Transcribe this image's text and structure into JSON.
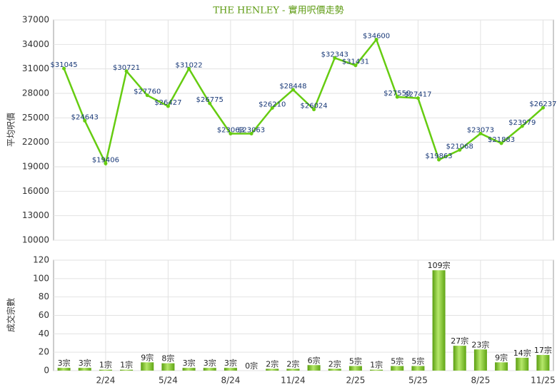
{
  "chart_data": [
    {
      "type": "line",
      "title": "THE HENLEY - 實用呎價走勢",
      "y_label": "平均呎價",
      "color": "#66cc11",
      "values": [
        31045,
        24643,
        19406,
        30721,
        27760,
        26427,
        31022,
        26775,
        23063,
        23063,
        26210,
        28448,
        26024,
        32343,
        31431,
        34600,
        27559,
        27417,
        19863,
        21068,
        23073,
        21883,
        23979,
        26237
      ],
      "value_labels": [
        "$31045",
        "$24643",
        "$19406",
        "$30721",
        "$27760",
        "$26427",
        "$31022",
        "$26775",
        "$23063",
        "$23063",
        "$26210",
        "$28448",
        "$26024",
        "$32343",
        "$31431",
        "$34600",
        "$27559",
        "$27417",
        "$19863",
        "$21068",
        "$23073",
        "$21883",
        "$23979",
        "$26237"
      ],
      "ylim": [
        10000,
        37000
      ],
      "yticks": [
        10000,
        13000,
        16000,
        19000,
        22000,
        25000,
        28000,
        31000,
        34000,
        37000
      ],
      "grid": true
    },
    {
      "type": "bar",
      "y_label": "成交宗數",
      "color": "#7cc520",
      "categories": [
        null,
        null,
        "2/24",
        null,
        null,
        "5/24",
        null,
        null,
        "8/24",
        null,
        null,
        "11/24",
        null,
        null,
        "2/25",
        null,
        null,
        "5/25",
        null,
        null,
        "8/25",
        null,
        null,
        "11/25"
      ],
      "values": [
        3,
        3,
        1,
        1,
        9,
        8,
        3,
        3,
        3,
        0,
        2,
        2,
        6,
        2,
        5,
        1,
        5,
        5,
        109,
        27,
        23,
        9,
        14,
        17
      ],
      "value_labels": [
        "3宗",
        "3宗",
        "1宗",
        "1宗",
        "9宗",
        "8宗",
        "3宗",
        "3宗",
        "3宗",
        "0宗",
        "2宗",
        "2宗",
        "6宗",
        "2宗",
        "5宗",
        "1宗",
        "5宗",
        "5宗",
        "109宗",
        "27宗",
        "23宗",
        "9宗",
        "14宗",
        "17宗"
      ],
      "ylim": [
        0,
        120
      ],
      "yticks": [
        0,
        20,
        40,
        60,
        80,
        100,
        120
      ],
      "grid": true
    }
  ]
}
